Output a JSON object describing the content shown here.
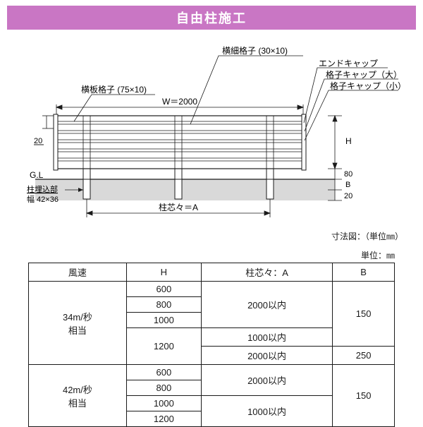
{
  "title": "自由柱施工",
  "diagram": {
    "labels": {
      "yokohoso": "横細格子 (30×10)",
      "endcap": "エンドキャップ",
      "koushi_dai": "格子キャップ（大）",
      "koushi_sho": "格子キャップ（小）",
      "yokoita": "横板格子 (75×10)",
      "W": "W＝2000",
      "left_dim": "20",
      "GL": "G.L",
      "maibu_label": "柱埋込部",
      "maibu_size": "幅 42×36",
      "A_label": "柱芯々＝A",
      "H": "H",
      "dim80": "80",
      "B": "B",
      "dim20": "20"
    },
    "caption": "寸法図：（単位㎜）",
    "colors": {
      "stroke": "#1a1a1a",
      "ground": "#d9d9d9",
      "fence_fill": "#ffffff"
    }
  },
  "table": {
    "unit_label": "単位：㎜",
    "headers": [
      "風速",
      "H",
      "柱芯々：A",
      "B"
    ],
    "rowgroups": [
      {
        "wind": "34m/秒\n相当",
        "rows": [
          {
            "H": "600",
            "A": "2000以内",
            "A_span": 3,
            "B": "150",
            "B_span": 4
          },
          {
            "H": "800"
          },
          {
            "H": "1000"
          },
          {
            "H": "1200",
            "A": "1000以内",
            "A_span": 1,
            "H_span": 2
          },
          {
            "A": "2000以内",
            "A_span": 1,
            "B": "250",
            "B_span": 1
          }
        ]
      },
      {
        "wind": "42m/秒\n相当",
        "rows": [
          {
            "H": "600",
            "A": "2000以内",
            "A_span": 2,
            "B": "150",
            "B_span": 4
          },
          {
            "H": "800"
          },
          {
            "H": "1000",
            "A": "1000以内",
            "A_span": 2
          },
          {
            "H": "1200"
          }
        ]
      }
    ]
  }
}
